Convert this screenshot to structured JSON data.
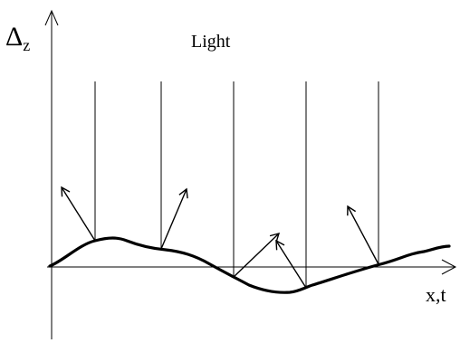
{
  "labels": {
    "y_axis_symbol": "Δ",
    "y_axis_subscript": "z",
    "x_axis": "x,t",
    "light": "Light"
  },
  "colors": {
    "ink": "#000000",
    "background": "#ffffff"
  }
}
